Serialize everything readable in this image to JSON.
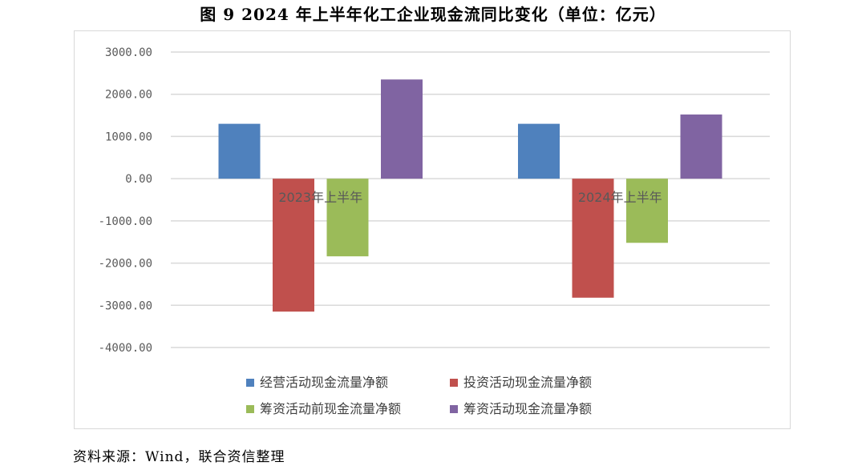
{
  "figure": {
    "title": "图 9 2024 年上半年化工企业现金流同比变化（单位：亿元）",
    "source": "资料来源：Wind，联合资信整理"
  },
  "chart_data": {
    "type": "bar",
    "title": "",
    "xlabel": "",
    "ylabel": "",
    "categories": [
      "2023年上半年",
      "2024年上半年"
    ],
    "series": [
      {
        "name": "经营活动现金流量净额",
        "color": "#4f81bd",
        "values": [
          1300,
          1300
        ]
      },
      {
        "name": "投资活动现金流量净额",
        "color": "#c0504d",
        "values": [
          -3150,
          -2820
        ]
      },
      {
        "name": "筹资活动前现金流量净额",
        "color": "#9bbb59",
        "values": [
          -1840,
          -1520
        ]
      },
      {
        "name": "筹资活动现金流量净额",
        "color": "#8064a2",
        "values": [
          2350,
          1520
        ]
      }
    ],
    "ylim": [
      -4000,
      3000
    ],
    "yticks": [
      3000,
      2000,
      1000,
      0,
      -1000,
      -2000,
      -3000,
      -4000
    ],
    "ytick_labels": [
      "3000.00",
      "2000.00",
      "1000.00",
      "0.00",
      "-1000.00",
      "-2000.00",
      "-3000.00",
      "-4000.00"
    ],
    "grid": true,
    "legend_position": "bottom",
    "gridline_color": "#d9d9d9"
  }
}
